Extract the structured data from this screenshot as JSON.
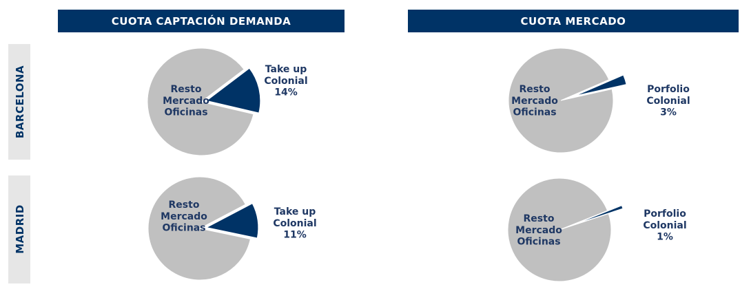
{
  "columns": [
    "CUOTA CAPTACIÓN DEMANDA",
    "CUOTA MERCADO"
  ],
  "rows": [
    "BARCELONA",
    "MADRID"
  ],
  "chart_data": [
    {
      "type": "pie",
      "categories": [
        "Resto\nMercado\nOficinas",
        "Take up\nColonial"
      ],
      "values": [
        86,
        14
      ],
      "value_labels": [
        null,
        "14%"
      ],
      "colors": [
        "#c0c0c0",
        "#003366"
      ]
    },
    {
      "type": "pie",
      "categories": [
        "Resto\nMercado\nOficinas",
        "Porfolio\nColonial"
      ],
      "values": [
        97,
        3
      ],
      "value_labels": [
        null,
        "3%"
      ],
      "colors": [
        "#c0c0c0",
        "#003366"
      ]
    },
    {
      "type": "pie",
      "categories": [
        "Resto\nMercado\nOficinas",
        "Take up\nColonial"
      ],
      "values": [
        89,
        11
      ],
      "value_labels": [
        null,
        "11%"
      ],
      "colors": [
        "#c0c0c0",
        "#003366"
      ]
    },
    {
      "type": "pie",
      "categories": [
        "Resto\nMercado\nOficinas",
        "Porfolio\nColonial"
      ],
      "values": [
        99,
        1
      ],
      "value_labels": [
        null,
        "1%"
      ],
      "colors": [
        "#c0c0c0",
        "#003366"
      ]
    }
  ]
}
